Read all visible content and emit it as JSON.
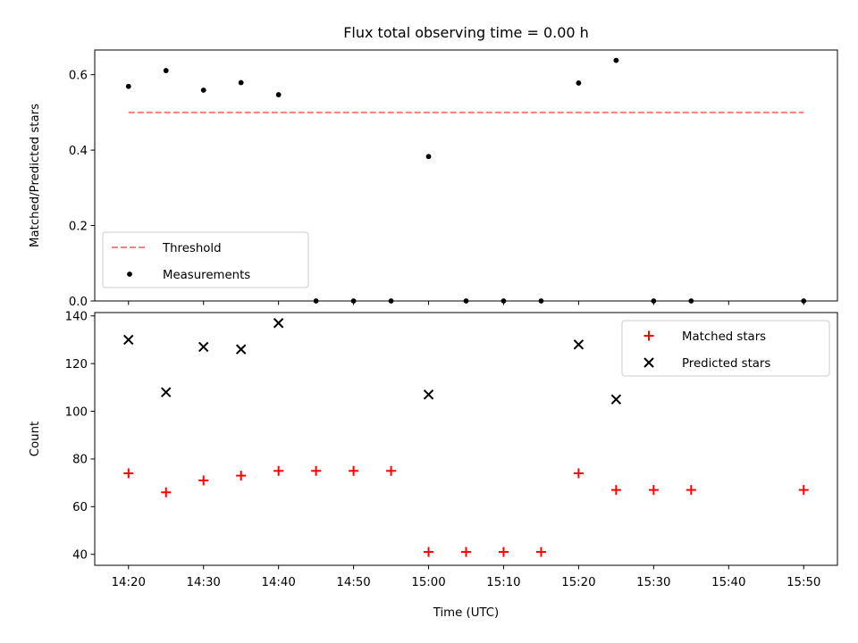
{
  "chart_data": {
    "title": "Flux total observing time = 0.00 h",
    "xlabel": "Time (UTC)",
    "x_ticks": [
      "14:20",
      "14:30",
      "14:40",
      "14:50",
      "15:00",
      "15:10",
      "15:20",
      "15:30",
      "15:40",
      "15:50"
    ],
    "x_tick_minutes": [
      0,
      10,
      20,
      30,
      40,
      50,
      60,
      70,
      80,
      90
    ],
    "x_range_minutes": [
      -4.5,
      94.5
    ],
    "x_origin": "14:20",
    "panels": [
      {
        "type": "scatter",
        "ylabel": "Matched/Predicted stars",
        "ylim": [
          0,
          0.6655
        ],
        "yticks": [
          0.0,
          0.2,
          0.4,
          0.6
        ],
        "ytick_labels": [
          "0.0",
          "0.2",
          "0.4",
          "0.6"
        ],
        "legend_position": "lower-left",
        "series": [
          {
            "name": "Threshold",
            "kind": "dashed-line",
            "color": "#ff7f7f",
            "x": [
              0,
              90
            ],
            "values": [
              0.5,
              0.5
            ]
          },
          {
            "name": "Measurements",
            "kind": "dot",
            "color": "#000000",
            "x": [
              0,
              5,
              10,
              15,
              20,
              25,
              30,
              35,
              40,
              45,
              50,
              55,
              60,
              65,
              70,
              75,
              90
            ],
            "values": [
              0.569,
              0.611,
              0.559,
              0.579,
              0.547,
              0.0,
              0.0,
              0.0,
              0.383,
              0.0,
              0.0,
              0.0,
              0.578,
              0.638,
              0.0,
              0.0,
              0.0
            ]
          }
        ]
      },
      {
        "type": "scatter",
        "ylabel": "Count",
        "ylim": [
          35.4,
          141.4
        ],
        "yticks": [
          40,
          60,
          80,
          100,
          120,
          140
        ],
        "ytick_labels": [
          "40",
          "60",
          "80",
          "100",
          "120",
          "140"
        ],
        "legend_position": "upper-right",
        "series": [
          {
            "name": "Matched stars",
            "kind": "plus",
            "color": "#ff0000",
            "x": [
              0,
              5,
              10,
              15,
              20,
              25,
              30,
              35,
              40,
              45,
              50,
              55,
              60,
              65,
              70,
              75,
              90
            ],
            "values": [
              74,
              66,
              71,
              73,
              75,
              75,
              75,
              75,
              41,
              41,
              41,
              41,
              74,
              67,
              67,
              67,
              67
            ]
          },
          {
            "name": "Predicted stars",
            "kind": "cross",
            "color": "#000000",
            "x": [
              0,
              5,
              10,
              15,
              20,
              40,
              60,
              65
            ],
            "values": [
              130,
              108,
              127,
              126,
              137,
              107,
              128,
              105
            ]
          }
        ]
      }
    ]
  }
}
